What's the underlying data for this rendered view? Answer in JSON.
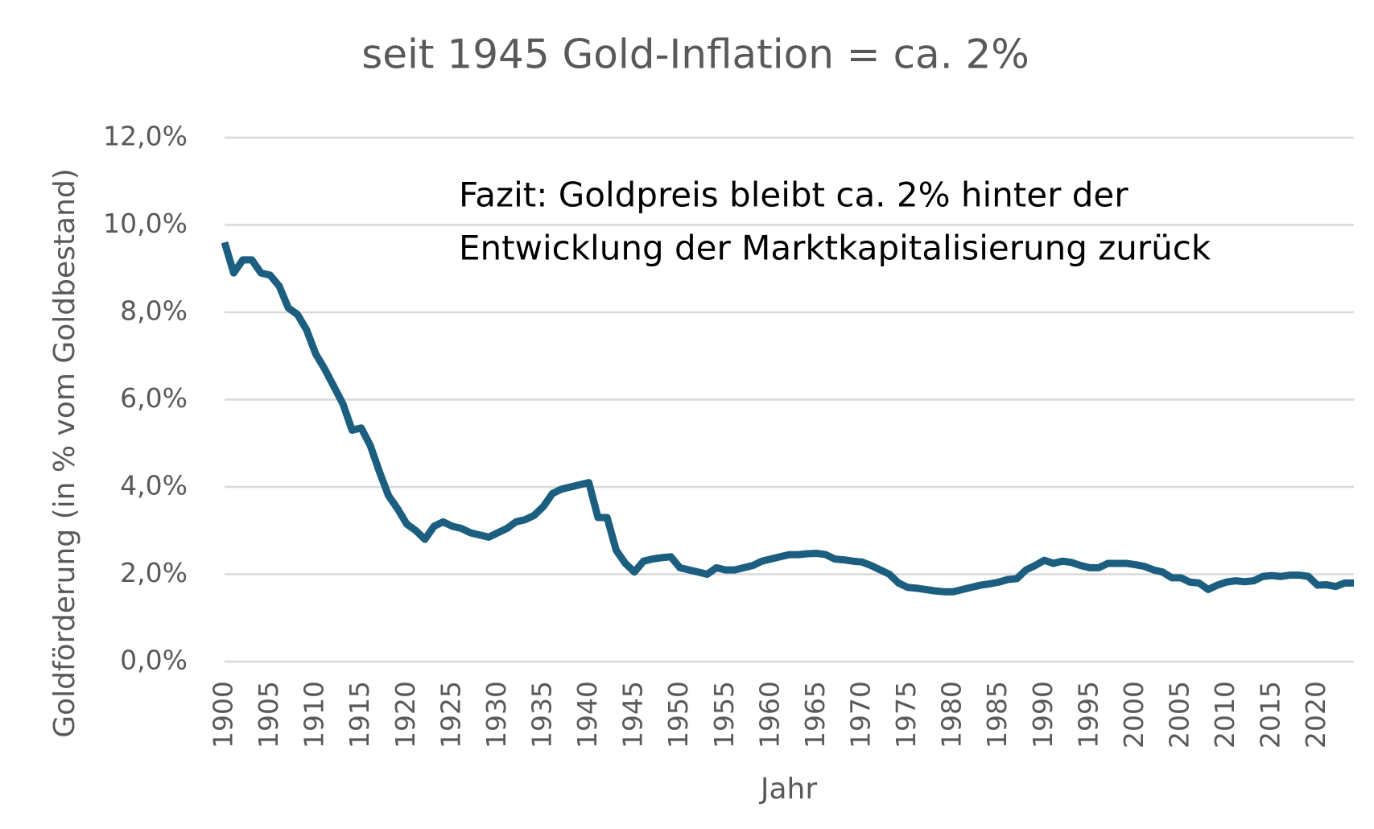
{
  "chart_data": {
    "type": "line",
    "title": "seit 1945 Gold-Inflation = ca. 2%",
    "annotation": [
      "Fazit: Goldpreis bleibt ca. 2% hinter der",
      "Entwicklung der Marktkapitalisierung zurück"
    ],
    "xlabel": "Jahr",
    "ylabel": "Goldförderung (in % vom Goldbestand)",
    "x": [
      1900,
      1901,
      1902,
      1903,
      1904,
      1905,
      1906,
      1907,
      1908,
      1909,
      1910,
      1911,
      1912,
      1913,
      1914,
      1915,
      1916,
      1917,
      1918,
      1919,
      1920,
      1921,
      1922,
      1923,
      1924,
      1925,
      1926,
      1927,
      1928,
      1929,
      1930,
      1931,
      1932,
      1933,
      1934,
      1935,
      1936,
      1937,
      1938,
      1939,
      1940,
      1941,
      1942,
      1943,
      1944,
      1945,
      1946,
      1947,
      1948,
      1949,
      1950,
      1951,
      1952,
      1953,
      1954,
      1955,
      1956,
      1957,
      1958,
      1959,
      1960,
      1961,
      1962,
      1963,
      1964,
      1965,
      1966,
      1967,
      1968,
      1969,
      1970,
      1971,
      1972,
      1973,
      1974,
      1975,
      1976,
      1977,
      1978,
      1979,
      1980,
      1981,
      1982,
      1983,
      1984,
      1985,
      1986,
      1987,
      1988,
      1989,
      1990,
      1991,
      1992,
      1993,
      1994,
      1995,
      1996,
      1997,
      1998,
      1999,
      2000,
      2001,
      2002,
      2003,
      2004,
      2005,
      2006,
      2007,
      2008,
      2009,
      2010,
      2011,
      2012,
      2013,
      2014,
      2015,
      2016,
      2017,
      2018,
      2019,
      2020,
      2021,
      2022,
      2023,
      2024
    ],
    "series": [
      {
        "name": "Goldförderung",
        "color": "#1b5e7f",
        "values": [
          9.6,
          8.9,
          9.2,
          9.2,
          8.9,
          8.85,
          8.6,
          8.1,
          7.95,
          7.6,
          7.05,
          6.7,
          6.3,
          5.9,
          5.3,
          5.35,
          4.95,
          4.35,
          3.8,
          3.5,
          3.15,
          3.0,
          2.8,
          3.1,
          3.2,
          3.1,
          3.05,
          2.95,
          2.9,
          2.85,
          2.95,
          3.05,
          3.2,
          3.25,
          3.35,
          3.55,
          3.85,
          3.95,
          4.0,
          4.05,
          4.1,
          3.3,
          3.3,
          2.55,
          2.25,
          2.05,
          2.3,
          2.35,
          2.38,
          2.4,
          2.15,
          2.1,
          2.05,
          2.0,
          2.15,
          2.1,
          2.1,
          2.15,
          2.2,
          2.3,
          2.35,
          2.4,
          2.45,
          2.45,
          2.47,
          2.48,
          2.45,
          2.35,
          2.33,
          2.3,
          2.28,
          2.2,
          2.1,
          2.0,
          1.8,
          1.7,
          1.68,
          1.65,
          1.62,
          1.6,
          1.6,
          1.65,
          1.7,
          1.75,
          1.78,
          1.82,
          1.88,
          1.9,
          2.1,
          2.2,
          2.32,
          2.25,
          2.3,
          2.27,
          2.2,
          2.15,
          2.15,
          2.25,
          2.25,
          2.25,
          2.22,
          2.18,
          2.1,
          2.05,
          1.92,
          1.92,
          1.82,
          1.8,
          1.65,
          1.75,
          1.82,
          1.85,
          1.83,
          1.85,
          1.95,
          1.97,
          1.95,
          1.98,
          1.98,
          1.95,
          1.75,
          1.76,
          1.72,
          1.8,
          1.8
        ]
      }
    ],
    "xlim": [
      1900,
      2024
    ],
    "xticks": [
      1900,
      1905,
      1910,
      1915,
      1920,
      1925,
      1930,
      1935,
      1940,
      1945,
      1950,
      1955,
      1960,
      1965,
      1970,
      1975,
      1980,
      1985,
      1990,
      1995,
      2000,
      2005,
      2010,
      2015,
      2020
    ],
    "ylim": [
      0,
      12
    ],
    "yticks": [
      {
        "value": 0,
        "label": "0,0%"
      },
      {
        "value": 2,
        "label": "2,0%"
      },
      {
        "value": 4,
        "label": "4,0%"
      },
      {
        "value": 6,
        "label": "6,0%"
      },
      {
        "value": 8,
        "label": "8,0%"
      },
      {
        "value": 10,
        "label": "10,0%"
      },
      {
        "value": 12,
        "label": "12,0%"
      }
    ],
    "grid": true
  }
}
